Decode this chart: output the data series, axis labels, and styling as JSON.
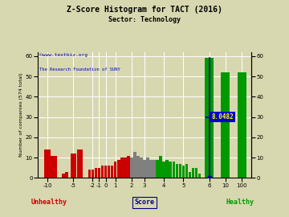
{
  "title": "Z-Score Histogram for TACT (2016)",
  "subtitle": "Sector: Technology",
  "watermark1": "©www.textbiz.org",
  "watermark2": "The Research Foundation of SUNY",
  "xlabel_score": "Score",
  "xlabel_unhealthy": "Unhealthy",
  "xlabel_healthy": "Healthy",
  "ylabel": "Number of companies (574 total)",
  "tact_label": "8.0482",
  "ylim": [
    0,
    62
  ],
  "yticks": [
    0,
    10,
    20,
    30,
    40,
    50,
    60
  ],
  "background_color": "#d8d8b0",
  "title_color": "#000000",
  "subtitle_color": "#000000",
  "watermark_color": "#0000cc",
  "unhealthy_color": "#cc0000",
  "healthy_color": "#009900",
  "score_color": "#000080",
  "crosshair_color": "#0000aa",
  "annotation_bg": "#0000cc",
  "annotation_fg": "#ffff00",
  "all_bars": [
    [
      0.5,
      1.0,
      14,
      "#cc0000"
    ],
    [
      1.5,
      1.0,
      11,
      "#cc0000"
    ],
    [
      3.0,
      0.5,
      2,
      "#cc0000"
    ],
    [
      3.5,
      0.5,
      3,
      "#cc0000"
    ],
    [
      4.5,
      1.0,
      12,
      "#cc0000"
    ],
    [
      5.5,
      1.0,
      14,
      "#cc0000"
    ],
    [
      7.0,
      0.5,
      4,
      "#cc0000"
    ],
    [
      7.5,
      0.5,
      4,
      "#cc0000"
    ],
    [
      8.0,
      0.5,
      5,
      "#cc0000"
    ],
    [
      8.5,
      0.5,
      5,
      "#cc0000"
    ],
    [
      9.0,
      0.5,
      6,
      "#cc0000"
    ],
    [
      9.5,
      0.5,
      6,
      "#cc0000"
    ],
    [
      10.0,
      0.5,
      6,
      "#cc0000"
    ],
    [
      10.5,
      0.5,
      6,
      "#cc0000"
    ],
    [
      11.0,
      0.5,
      8,
      "#cc0000"
    ],
    [
      11.5,
      0.5,
      9,
      "#cc0000"
    ],
    [
      12.0,
      0.5,
      10,
      "#cc0000"
    ],
    [
      12.5,
      0.5,
      10,
      "#cc0000"
    ],
    [
      13.0,
      0.5,
      11,
      "#cc0000"
    ],
    [
      13.5,
      0.5,
      10,
      "#808080"
    ],
    [
      14.0,
      0.5,
      13,
      "#808080"
    ],
    [
      14.5,
      0.5,
      11,
      "#808080"
    ],
    [
      15.0,
      0.5,
      10,
      "#808080"
    ],
    [
      15.5,
      0.5,
      9,
      "#808080"
    ],
    [
      16.0,
      0.5,
      10,
      "#808080"
    ],
    [
      16.5,
      0.5,
      9,
      "#808080"
    ],
    [
      17.0,
      0.5,
      9,
      "#808080"
    ],
    [
      17.5,
      0.5,
      9,
      "#009900"
    ],
    [
      18.0,
      0.5,
      11,
      "#009900"
    ],
    [
      18.5,
      0.5,
      8,
      "#009900"
    ],
    [
      19.0,
      0.5,
      9,
      "#009900"
    ],
    [
      19.5,
      0.5,
      8,
      "#009900"
    ],
    [
      20.0,
      0.5,
      8,
      "#009900"
    ],
    [
      20.5,
      0.5,
      7,
      "#009900"
    ],
    [
      21.0,
      0.5,
      7,
      "#009900"
    ],
    [
      21.5,
      0.5,
      6,
      "#009900"
    ],
    [
      22.0,
      0.5,
      7,
      "#009900"
    ],
    [
      22.5,
      0.5,
      3,
      "#009900"
    ],
    [
      23.0,
      0.5,
      5,
      "#009900"
    ],
    [
      23.5,
      0.5,
      5,
      "#009900"
    ],
    [
      24.0,
      0.5,
      2,
      "#009900"
    ],
    [
      25.5,
      1.5,
      59,
      "#009900"
    ],
    [
      28.0,
      1.5,
      52,
      "#009900"
    ],
    [
      30.5,
      1.5,
      52,
      "#009900"
    ]
  ],
  "xtick_map": {
    "-10": 0.5,
    "-5": 4.5,
    "-2": 7.5,
    "-1": 8.5,
    "0": 9.5,
    "1": 11.0,
    "2": 13.5,
    "3": 15.5,
    "4": 18.5,
    "5": 21.5,
    "6": 25.5,
    "10": 28.0,
    "100": 30.5
  },
  "tact_x": 25.5,
  "tact_y": 30,
  "xlim": [
    -1,
    32
  ]
}
